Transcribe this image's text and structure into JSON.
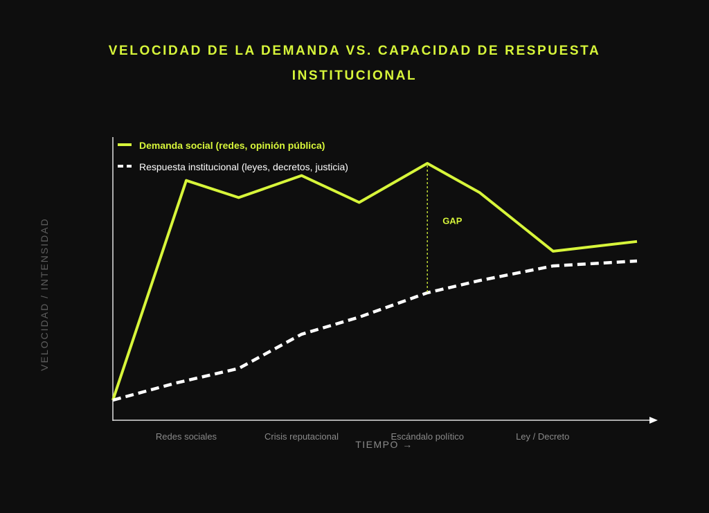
{
  "title_line1": "VELOCIDAD DE LA DEMANDA VS. CAPACIDAD DE RESPUESTA",
  "title_line2": "INSTITUCIONAL",
  "colors": {
    "background": "#0e0e0e",
    "accent": "#d7f53a",
    "response": "#ffffff",
    "axis": "#e0e0e0"
  },
  "chart_data": {
    "type": "line",
    "ylabel": "VELOCIDAD / INTENSIDAD",
    "xlabel": "TIEMPO →",
    "x": [
      0,
      1,
      2,
      3,
      4,
      5,
      6,
      7,
      8,
      9
    ],
    "categories": [
      "Redes sociales",
      "Crisis reputacional",
      "Escándalo político",
      "Ley / Decreto"
    ],
    "category_positions": [
      1.4,
      3.6,
      6.0,
      8.2
    ],
    "xlim": [
      0,
      10
    ],
    "ylim": [
      0,
      100
    ],
    "grid": false,
    "legend_position": "top-left",
    "series": [
      {
        "name": "Demanda social (redes, opinión pública)",
        "style": "solid",
        "color": "#d7f53a",
        "x": [
          0,
          1.4,
          2.4,
          3.6,
          4.7,
          6.0,
          7.0,
          8.4,
          10
        ],
        "y": [
          9,
          99,
          92,
          101,
          90,
          106,
          94,
          70,
          74
        ]
      },
      {
        "name": "Respuesta institucional (leyes, decretos, justicia)",
        "style": "dashed",
        "color": "#ffffff",
        "x": [
          0,
          1.2,
          2.4,
          3.6,
          4.7,
          6.0,
          7.0,
          8.4,
          10
        ],
        "y": [
          9,
          16,
          22,
          36,
          43,
          53,
          58,
          64,
          66
        ]
      }
    ],
    "annotations": [
      {
        "label": "GAP",
        "x": 6.0,
        "y_from": 53,
        "y_to": 106
      }
    ]
  }
}
